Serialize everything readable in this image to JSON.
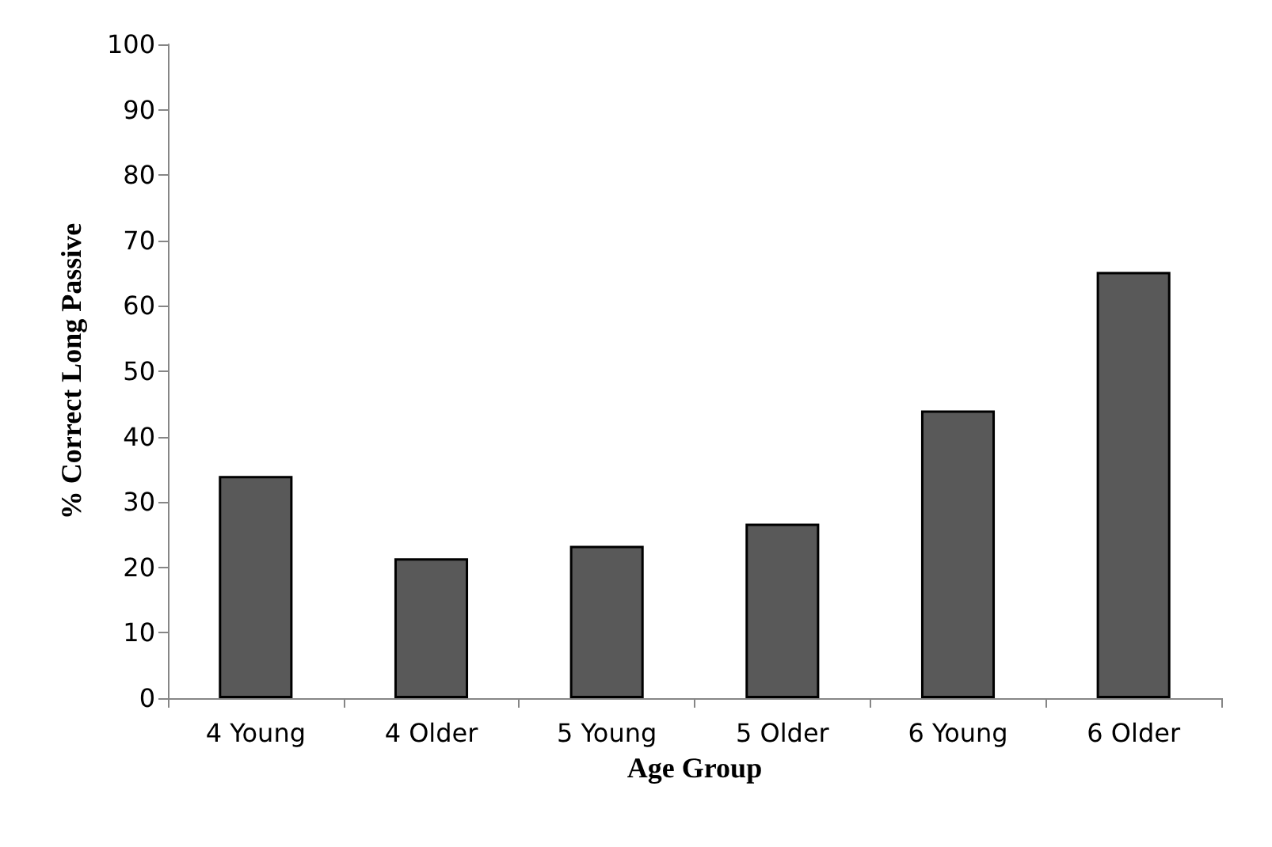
{
  "chart_data": {
    "type": "bar",
    "xlabel": "Age Group",
    "ylabel": "% Correct Long Passive",
    "categories": [
      "4 Young",
      "4 Older",
      "5 Young",
      "5 Older",
      "6 Young",
      "6 Older"
    ],
    "values": [
      34,
      21.4,
      23.3,
      26.7,
      44,
      65.2
    ],
    "color": "#595959",
    "ylim": [
      0,
      100
    ],
    "yticks": [
      0,
      10,
      20,
      30,
      40,
      50,
      60,
      70,
      80,
      90,
      100
    ],
    "grid": false
  }
}
